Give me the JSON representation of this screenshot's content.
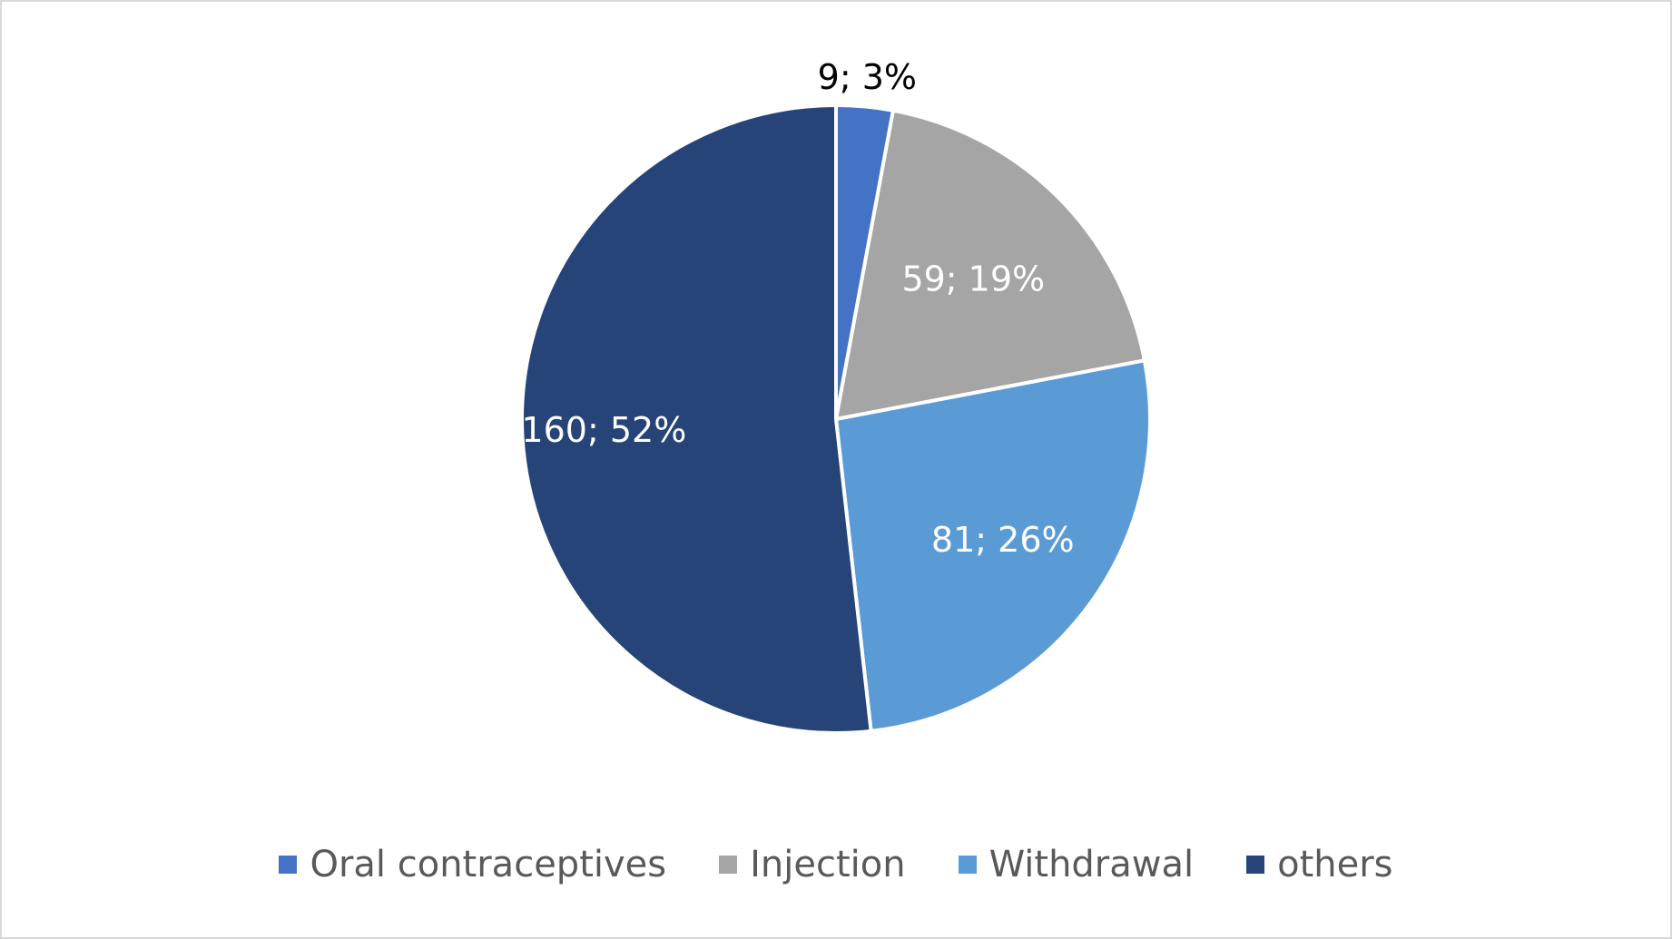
{
  "chart_data": {
    "type": "pie",
    "title": "",
    "categories": [
      "Oral contraceptives",
      "Injection",
      "Withdrawal",
      "others"
    ],
    "values": [
      9,
      59,
      81,
      160
    ],
    "percentages": [
      3,
      19,
      26,
      52
    ],
    "data_labels": [
      "9; 3%",
      "59; 19%",
      "81; 26%",
      "160; 52%"
    ],
    "colors": [
      "#4472c4",
      "#a5a5a5",
      "#5b9bd5",
      "#264478"
    ],
    "label_colors": [
      "#000000",
      "#ffffff",
      "#ffffff",
      "#ffffff"
    ],
    "start_angle": "12 o'clock",
    "direction": "clockwise",
    "legend_position": "bottom"
  }
}
